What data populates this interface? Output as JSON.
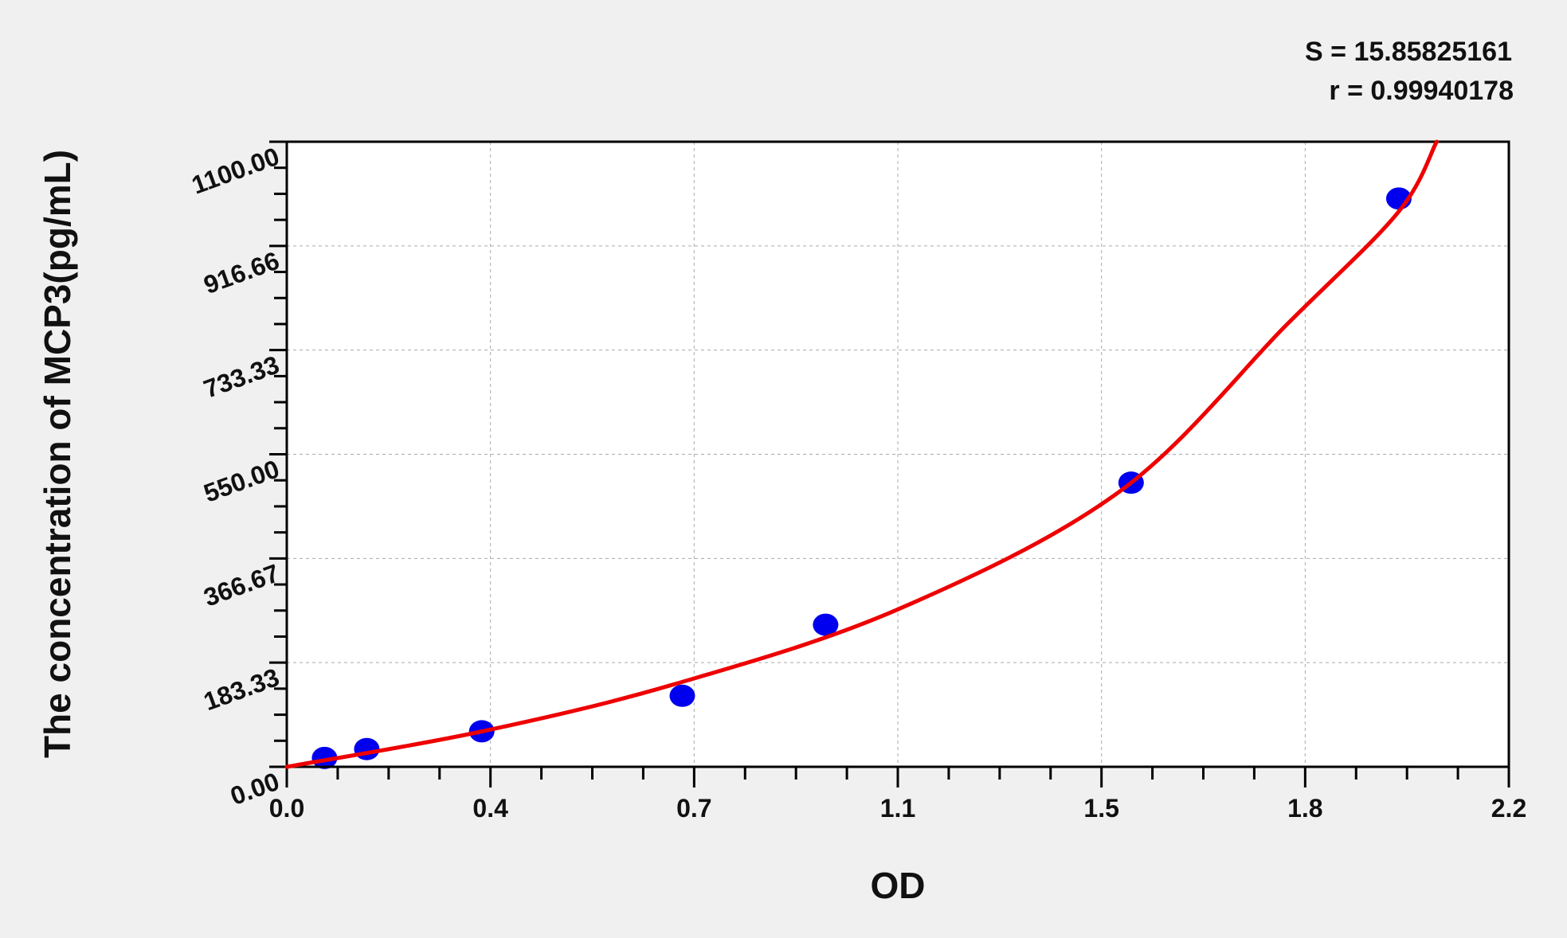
{
  "chart_data": {
    "type": "scatter",
    "xlabel": "OD",
    "ylabel": "The concentration of MCP3(pg/mL)",
    "xlim": [
      0,
      2.2
    ],
    "ylim": [
      0,
      1100
    ],
    "x_tick_labels": [
      "0.0",
      "0.4",
      "0.7",
      "1.1",
      "1.5",
      "1.8",
      "2.2"
    ],
    "y_tick_labels": [
      "0.00",
      "183.33",
      "366.67",
      "550.00",
      "733.33",
      "916.66",
      "1100.00"
    ],
    "grid": true,
    "annotations": [
      "S = 15.85825161",
      "r = 0.99940178"
    ],
    "points": {
      "x": [
        0.068,
        0.144,
        0.351,
        0.712,
        0.97,
        1.52,
        2.002
      ],
      "y": [
        15.6,
        31.25,
        62.5,
        125,
        250,
        500,
        1000
      ]
    },
    "fit_curve": {
      "x": [
        0,
        0.35,
        0.7,
        1.1,
        1.5,
        1.8,
        2.0,
        2.07
      ],
      "y": [
        0,
        62,
        146,
        277,
        485,
        778,
        975,
        1100
      ]
    },
    "colors": {
      "points": "#0000ee",
      "curve": "#ee0000",
      "background": "#f0f0f0"
    }
  }
}
